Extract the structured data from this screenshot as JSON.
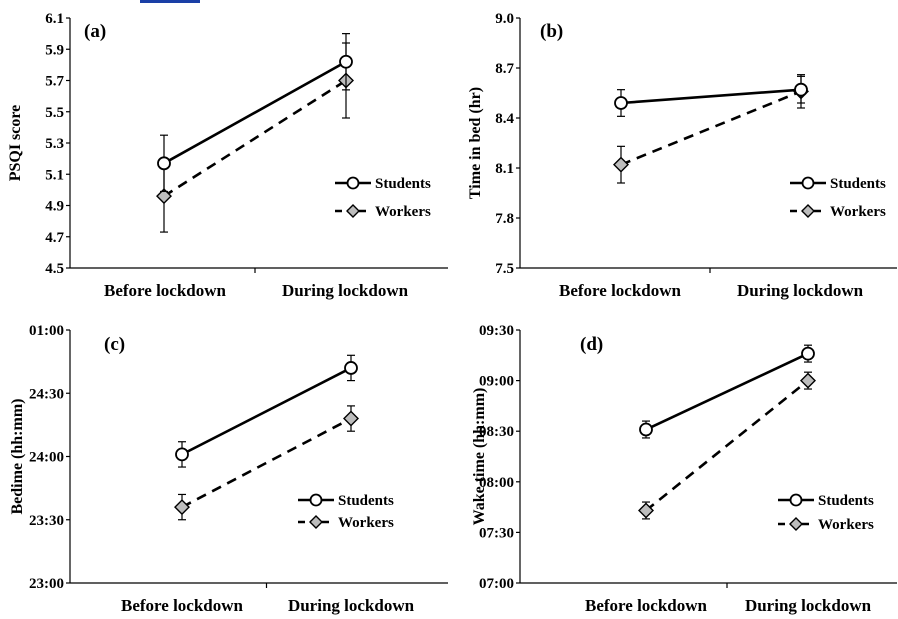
{
  "chart_data": [
    {
      "type": "line",
      "panel": "(a)",
      "ylabel": "PSQI score",
      "ylim": [
        4.5,
        6.1
      ],
      "yticks": [
        "4.5",
        "4.7",
        "4.9",
        "5.1",
        "5.3",
        "5.5",
        "5.7",
        "5.9",
        "6.1"
      ],
      "categories": [
        "Before lockdown",
        "During lockdown"
      ],
      "series": [
        {
          "name": "Students",
          "values": [
            5.17,
            5.82
          ],
          "errors": [
            0.18,
            0.18
          ]
        },
        {
          "name": "Workers",
          "values": [
            4.96,
            5.7
          ],
          "errors": [
            0.23,
            0.24
          ]
        }
      ]
    },
    {
      "type": "line",
      "panel": "(b)",
      "ylabel": "Time in bed (hr)",
      "ylim": [
        7.5,
        9.0
      ],
      "yticks": [
        "7.5",
        "7.8",
        "8.1",
        "8.4",
        "8.7",
        "9.0"
      ],
      "categories": [
        "Before lockdown",
        "During lockdown"
      ],
      "series": [
        {
          "name": "Students",
          "values": [
            8.49,
            8.57
          ],
          "errors": [
            0.08,
            0.08
          ]
        },
        {
          "name": "Workers",
          "values": [
            8.12,
            8.56
          ],
          "errors": [
            0.11,
            0.1
          ]
        }
      ]
    },
    {
      "type": "line",
      "panel": "(c)",
      "ylabel": "Bedime (hh:mm)",
      "ylim": [
        1380,
        1500
      ],
      "yticks": [
        "23:00",
        "23:30",
        "24:00",
        "24:30",
        "01:00"
      ],
      "categories": [
        "Before lockdown",
        "During lockdown"
      ],
      "series": [
        {
          "name": "Students",
          "values": [
            1441,
            1482
          ],
          "errors": [
            6,
            6
          ]
        },
        {
          "name": "Workers",
          "values": [
            1416,
            1458
          ],
          "errors": [
            6,
            6
          ]
        }
      ]
    },
    {
      "type": "line",
      "panel": "(d)",
      "ylabel": "Wake time (hh:mm)",
      "ylim": [
        420,
        570
      ],
      "yticks": [
        "07:00",
        "07:30",
        "08:00",
        "08:30",
        "09:00",
        "09:30"
      ],
      "categories": [
        "Before lockdown",
        "During lockdown"
      ],
      "series": [
        {
          "name": "Students",
          "values": [
            511,
            556
          ],
          "errors": [
            5,
            5
          ]
        },
        {
          "name": "Workers",
          "values": [
            463,
            540
          ],
          "errors": [
            5,
            5
          ]
        }
      ]
    }
  ]
}
